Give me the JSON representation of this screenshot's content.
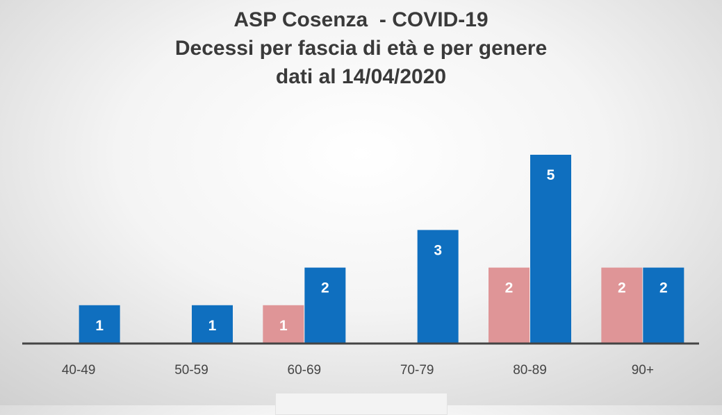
{
  "title": {
    "line1": "ASP Cosenza  - COVID-19",
    "line2": "Decessi per fascia di età e per genere",
    "line3": "dati al 14/04/2020"
  },
  "colors": {
    "female": "#df9597",
    "male": "#0f6fbf",
    "axis": "#444444",
    "title": "#3a3a3a"
  },
  "chart_data": {
    "type": "bar",
    "categories": [
      "40-49",
      "50-59",
      "60-69",
      "70-79",
      "80-89",
      "90+"
    ],
    "series": [
      {
        "color": "#df9597",
        "values": [
          0,
          0,
          1,
          0,
          2,
          2
        ]
      },
      {
        "color": "#0f6fbf",
        "values": [
          1,
          1,
          2,
          3,
          5,
          2
        ]
      }
    ],
    "xlabel": "",
    "ylabel": "",
    "ylim": [
      0,
      5
    ],
    "grid": false,
    "data_labels": true
  }
}
